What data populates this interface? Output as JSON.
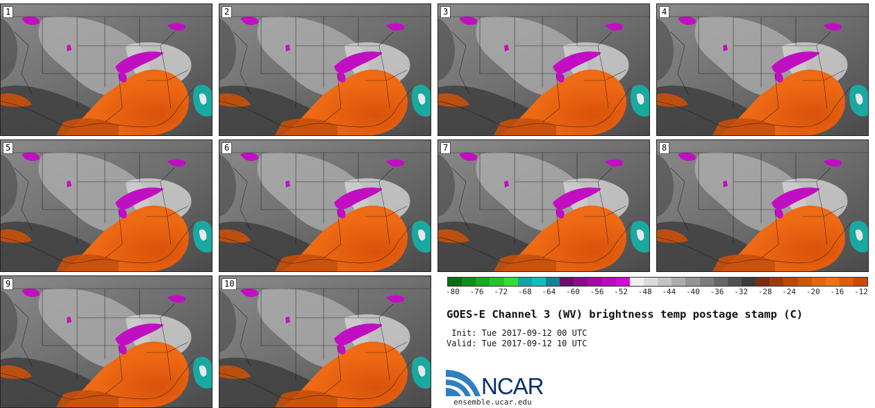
{
  "panels": [
    {
      "label": "1"
    },
    {
      "label": "2"
    },
    {
      "label": "3"
    },
    {
      "label": "4"
    },
    {
      "label": "5"
    },
    {
      "label": "6"
    },
    {
      "label": "7"
    },
    {
      "label": "8"
    },
    {
      "label": "9"
    },
    {
      "label": "10"
    }
  ],
  "colorbar": {
    "ticks": [
      "-80",
      "-76",
      "-72",
      "-68",
      "-64",
      "-60",
      "-56",
      "-52",
      "-48",
      "-44",
      "-40",
      "-36",
      "-32",
      "-28",
      "-24",
      "-20",
      "-16",
      "-12"
    ],
    "colors": [
      "#0a6e12",
      "#118c18",
      "#1aa922",
      "#23c52d",
      "#2ee03a",
      "#12a6a8",
      "#0fbfc0",
      "#1a7f99",
      "#6b0f6b",
      "#860e86",
      "#a10ca1",
      "#bb0bbb",
      "#d50ad5",
      "#f0f0f0",
      "#dcdcdc",
      "#c4c4c4",
      "#acacac",
      "#949494",
      "#7d7d7d",
      "#676767",
      "#515151",
      "#3c3c3c",
      "#7a2e10",
      "#9a3b0e",
      "#b8470b",
      "#d3540a",
      "#ea6212",
      "#f07016",
      "#e05a0c",
      "#c84a08"
    ]
  },
  "title": "GOES-E Channel 3 (WV) brightness temp postage stamp (C)",
  "init": " Init: Tue 2017-09-12 00 UTC",
  "valid": "Valid: Tue 2017-09-12 10 UTC",
  "logo": {
    "text": "NCAR",
    "url": "ensemble.ucar.edu"
  }
}
